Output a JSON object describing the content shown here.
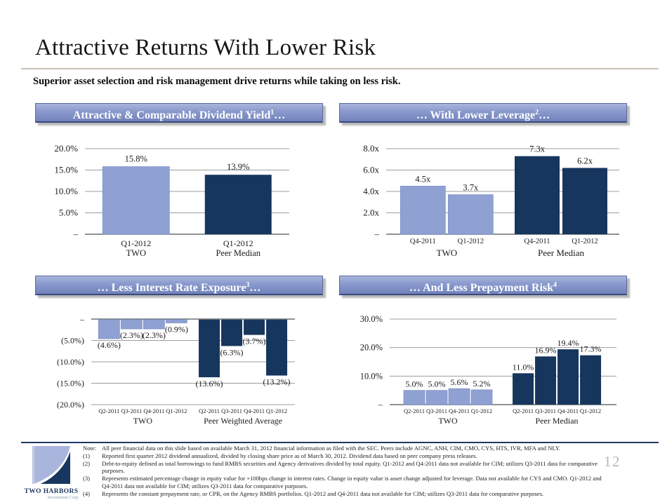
{
  "slide": {
    "title": "Attractive Returns With Lower Risk",
    "subtitle": "Superior asset selection and risk management drive returns while taking on less risk."
  },
  "colors": {
    "two_bar": "#8FA1D3",
    "two_bar_border": "#7D90C5",
    "peer_bar": "#17365D",
    "header_blue_top": "#AAB5DD",
    "header_blue_bottom": "#7282B9",
    "gridline": "#9D9D9D",
    "axis_line": "#6E6E6E",
    "navy_rule": "#1F3864"
  },
  "panels": [
    {
      "header": {
        "pre": "Attractive & Comparable Dividend Yield",
        "sup": "1",
        "post": "…"
      }
    },
    {
      "header": {
        "pre": "… With Lower Leverage",
        "sup": "2",
        "post": "…"
      }
    },
    {
      "header": {
        "pre": "… Less Interest Rate Exposure",
        "sup": "3",
        "post": "…"
      }
    },
    {
      "header": {
        "pre": "… And Less Prepayment Risk",
        "sup": "4",
        "post": ""
      }
    }
  ],
  "chart_data": [
    {
      "type": "bar",
      "title": "Attractive & Comparable Dividend Yield",
      "ymax": 20,
      "yticks": [
        "20.0%",
        "15.0%",
        "10.0%",
        "5.0%",
        "–"
      ],
      "grid": true,
      "groups": [
        {
          "name": "TWO",
          "color": "two_bar",
          "bars": [
            {
              "x": "Q1-2012",
              "value": 15.8,
              "label": "15.8%"
            }
          ]
        },
        {
          "name": "Peer Median",
          "color": "peer_bar",
          "bars": [
            {
              "x": "Q1-2012",
              "value": 13.9,
              "label": "13.9%"
            }
          ]
        }
      ]
    },
    {
      "type": "bar",
      "title": "… With Lower Leverage",
      "ymax": 8,
      "yticks": [
        "8.0x",
        "6.0x",
        "4.0x",
        "2.0x",
        "–"
      ],
      "grid": true,
      "groups": [
        {
          "name": "TWO",
          "color": "two_bar",
          "bars": [
            {
              "x": "Q4-2011",
              "value": 4.5,
              "label": "4.5x"
            },
            {
              "x": "Q1-2012",
              "value": 3.7,
              "label": "3.7x"
            }
          ]
        },
        {
          "name": "Peer Median",
          "color": "peer_bar",
          "bars": [
            {
              "x": "Q4-2011",
              "value": 7.3,
              "label": "7.3x"
            },
            {
              "x": "Q1-2012",
              "value": 6.2,
              "label": "6.2x"
            }
          ]
        }
      ]
    },
    {
      "type": "bar",
      "title": "… Less Interest Rate Exposure",
      "negative": true,
      "ymax": 20,
      "yticks": [
        "–",
        "(5.0%)",
        "(10.0%)",
        "(15.0%)",
        "(20.0%)"
      ],
      "grid": true,
      "groups": [
        {
          "name": "TWO",
          "color": "two_bar",
          "bars": [
            {
              "x": "Q2-2011",
              "value": -4.6,
              "label": "(4.6%)"
            },
            {
              "x": "Q3-2011",
              "value": -2.3,
              "label": "(2.3%)"
            },
            {
              "x": "Q4-2011",
              "value": -2.3,
              "label": "(2.3%)"
            },
            {
              "x": "Q1-2012",
              "value": -0.9,
              "label": "(0.9%)"
            }
          ]
        },
        {
          "name": "Peer Weighted Average",
          "color": "peer_bar",
          "bars": [
            {
              "x": "Q2-2011",
              "value": -13.6,
              "label": "(13.6%)"
            },
            {
              "x": "Q3-2011",
              "value": -6.3,
              "label": "(6.3%)"
            },
            {
              "x": "Q4-2011",
              "value": -3.7,
              "label": "(3.7%)"
            },
            {
              "x": "Q1-2012",
              "value": -13.2,
              "label": "(13.2%)"
            }
          ]
        }
      ]
    },
    {
      "type": "bar",
      "title": "… And Less Prepayment Risk",
      "ymax": 30,
      "yticks": [
        "30.0%",
        "20.0%",
        "10.0%",
        "–"
      ],
      "grid": true,
      "groups": [
        {
          "name": "TWO",
          "color": "two_bar",
          "bars": [
            {
              "x": "Q2-2011",
              "value": 5.0,
              "label": "5.0%"
            },
            {
              "x": "Q3-2011",
              "value": 5.0,
              "label": "5.0%"
            },
            {
              "x": "Q4-2011",
              "value": 5.6,
              "label": "5.6%"
            },
            {
              "x": "Q1-2012",
              "value": 5.2,
              "label": "5.2%"
            }
          ]
        },
        {
          "name": "Peer Median",
          "color": "peer_bar",
          "bars": [
            {
              "x": "Q2-2011",
              "value": 11.0,
              "label": "11.0%"
            },
            {
              "x": "Q3-2011",
              "value": 16.9,
              "label": "16.9%"
            },
            {
              "x": "Q4-2011",
              "value": 19.4,
              "label": "19.4%"
            },
            {
              "x": "Q1-2012",
              "value": 17.3,
              "label": "17.3%"
            }
          ]
        }
      ]
    }
  ],
  "footer": {
    "note_label": "Note:",
    "note_text": "All peer financial data on this slide based on available March 31, 2012 financial information as filed with the SEC.  Peers include AGNC, ANH, CIM, CMO, CYS, HTS, IVR, MFA and NLY.",
    "footnotes": [
      {
        "num": "(1)",
        "text": "Reported first quarter 2012 dividend annualized, divided by closing share price as of March 30, 2012. Dividend data based on peer company press releases."
      },
      {
        "num": "(2)",
        "text": "Debt-to-equity defined as total borrowings to fund RMBS securities and Agency derivatives divided by total equity. Q1-2012 and Q4-2011 data not available for CIM; utilizes Q3-2011 data for comparative purposes."
      },
      {
        "num": "(3)",
        "text": "Represents estimated percentage change in equity value for +100bps change in interest rates. Change in equity value is asset change adjusted for leverage.  Data not available for CYS and CMO.  Q1-2012 and Q4-2011 data not available for CIM; utilizes Q3-2011 data for comparative purposes."
      },
      {
        "num": "(4)",
        "text": "Represents the constant prepayment rate, or CPR, on the Agency RMBS portfolios. Q1-2012 and Q4-2011 data not available for CIM; utilizes Q3-2011 data for comparative purposes."
      }
    ],
    "logo": {
      "name": "TWO HARBORS",
      "subname": "Investment Corp."
    },
    "page_number": "12"
  }
}
